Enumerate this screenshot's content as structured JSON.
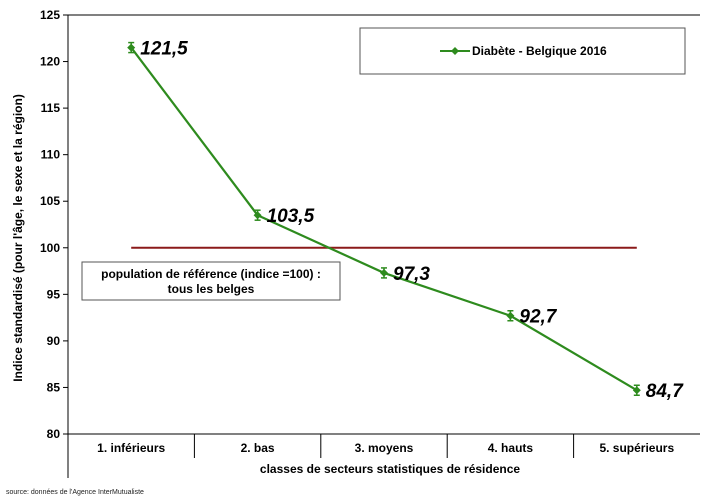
{
  "chart_data": {
    "type": "line",
    "categories": [
      "1. inférieurs",
      "2. bas",
      "3. moyens",
      "4. hauts",
      "5. supérieurs"
    ],
    "series": [
      {
        "name": "Diabète - Belgique 2016",
        "values": [
          121.5,
          103.5,
          97.3,
          92.7,
          84.7
        ],
        "color": "#2e8b1e"
      }
    ],
    "data_labels": [
      "121,5",
      "103,5",
      "97,3",
      "92,7",
      "84,7"
    ],
    "reference_line": {
      "value": 100,
      "color": "#8b1a1a"
    },
    "xlabel": "classes de secteurs statistiques de résidence",
    "ylabel": "Indice standardisé (pour l'âge, le sexe et la région)",
    "ylim": [
      80,
      125
    ],
    "yticks": [
      80,
      85,
      90,
      95,
      100,
      105,
      110,
      115,
      120,
      125
    ],
    "ytick_labels": [
      "80",
      "85",
      "90",
      "95",
      "100",
      "105",
      "110",
      "115",
      "120",
      "125"
    ],
    "grid": false,
    "legend": "top-right",
    "annotation": {
      "line1": "population de référence (indice =100) :",
      "line2": "tous les belges"
    },
    "source": "source: données de l'Agence InterMutualiste"
  }
}
